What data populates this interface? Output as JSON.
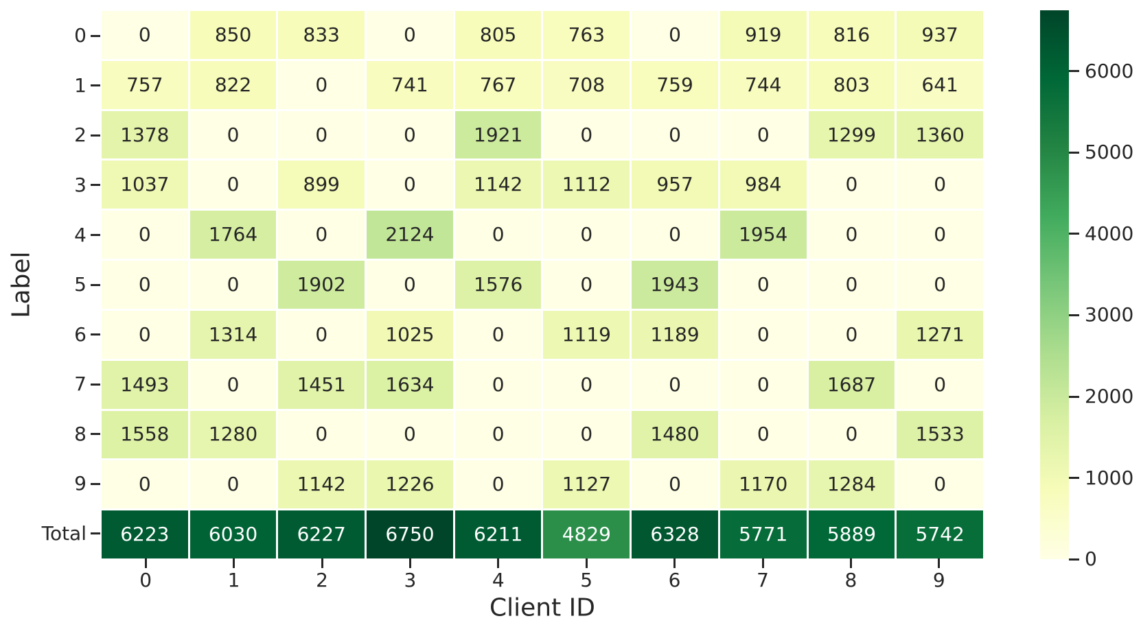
{
  "chart_data": {
    "type": "heatmap",
    "title": "",
    "xlabel": "Client ID",
    "ylabel": "Label",
    "x_tick_labels": [
      "0",
      "1",
      "2",
      "3",
      "4",
      "5",
      "6",
      "7",
      "8",
      "9"
    ],
    "y_tick_labels": [
      "0",
      "1",
      "2",
      "3",
      "4",
      "5",
      "6",
      "7",
      "8",
      "9",
      "Total"
    ],
    "values": [
      [
        0,
        850,
        833,
        0,
        805,
        763,
        0,
        919,
        816,
        937
      ],
      [
        757,
        822,
        0,
        741,
        767,
        708,
        759,
        744,
        803,
        641
      ],
      [
        1378,
        0,
        0,
        0,
        1921,
        0,
        0,
        0,
        1299,
        1360
      ],
      [
        1037,
        0,
        899,
        0,
        1142,
        1112,
        957,
        984,
        0,
        0
      ],
      [
        0,
        1764,
        0,
        2124,
        0,
        0,
        0,
        1954,
        0,
        0
      ],
      [
        0,
        0,
        1902,
        0,
        1576,
        0,
        1943,
        0,
        0,
        0
      ],
      [
        0,
        1314,
        0,
        1025,
        0,
        1119,
        1189,
        0,
        0,
        1271
      ],
      [
        1493,
        0,
        1451,
        1634,
        0,
        0,
        0,
        0,
        1687,
        0
      ],
      [
        1558,
        1280,
        0,
        0,
        0,
        0,
        1480,
        0,
        0,
        1533
      ],
      [
        0,
        0,
        1142,
        1226,
        0,
        1127,
        0,
        1170,
        1284,
        0
      ],
      [
        6223,
        6030,
        6227,
        6750,
        6211,
        4829,
        6328,
        5771,
        5889,
        5742
      ]
    ],
    "vmin": 0,
    "vmax": 6750,
    "colorbar_ticks": [
      0,
      1000,
      2000,
      3000,
      4000,
      5000,
      6000
    ],
    "colormap": {
      "name": "YlGn",
      "stops": [
        "#ffffe5",
        "#f7fcb9",
        "#d9f0a3",
        "#addd8e",
        "#78c679",
        "#41ab5d",
        "#238443",
        "#006837",
        "#004529"
      ]
    },
    "colors": {
      "annotation_dark": "#262626",
      "annotation_light": "#ffffff",
      "axis_text": "#262626",
      "cell_gap": "#ffffff",
      "background": "#ffffff"
    },
    "legend_position": "right-colorbar",
    "grid_lines": "white cell separators"
  }
}
